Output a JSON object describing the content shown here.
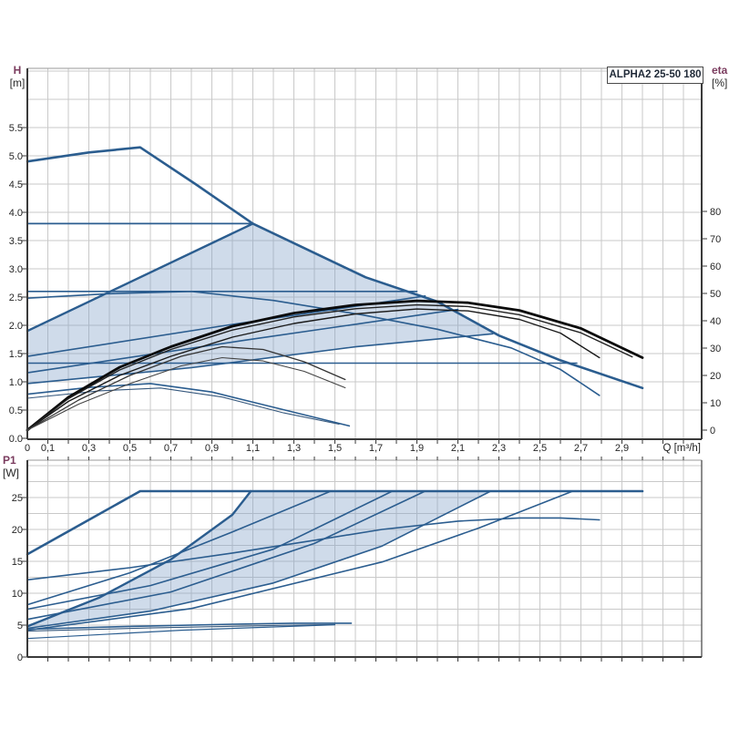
{
  "title_box": "ALPHA2 25-50 180",
  "colors": {
    "curve_blue": "#2b5d8f",
    "curve_blue_dark": "#37597e",
    "curve_black": "#0b0b0b",
    "curve_gray_black": "#333333",
    "shading": "rgba(130,160,200,0.38)",
    "grid": "#c9c9c9",
    "axis": "#3a3a3a",
    "border": "#999999",
    "tick_text": "#262626",
    "quantity_text": "#7a3b5e",
    "title_text": "#1f2937"
  },
  "labels": {
    "h_qty": "H",
    "h_unit": "[m]",
    "eta_qty": "eta",
    "eta_unit": "[%]",
    "p1_qty": "P1",
    "p1_unit": "[W]",
    "q_axis": "Q [m³/h]"
  },
  "chart_data": [
    {
      "id": "qh",
      "type": "line",
      "title": "ALPHA2 25-50 180",
      "xlabel": "Q [m³/h]",
      "ylabel_left": "H [m]",
      "ylabel_right": "eta [%]",
      "x_range": [
        0,
        3.29
      ],
      "y_left_range": [
        0,
        6.55
      ],
      "y_right_range": [
        0,
        80
      ],
      "grid": {
        "x_step": 0.1,
        "y_step": 0.5
      },
      "x_ticks": [
        [
          "0",
          0
        ],
        [
          "0,1",
          0.1
        ],
        [
          "0,3",
          0.3
        ],
        [
          "0,5",
          0.5
        ],
        [
          "0,7",
          0.7
        ],
        [
          "0,9",
          0.9
        ],
        [
          "1,1",
          1.1
        ],
        [
          "1,3",
          1.3
        ],
        [
          "1,5",
          1.5
        ],
        [
          "1,7",
          1.7
        ],
        [
          "1,9",
          1.9
        ],
        [
          "2,1",
          2.1
        ],
        [
          "2,3",
          2.3
        ],
        [
          "2,5",
          2.5
        ],
        [
          "2,7",
          2.7
        ],
        [
          "2,9",
          2.9
        ]
      ],
      "y_ticks": [
        [
          "0.0",
          0
        ],
        [
          "0.5",
          0.5
        ],
        [
          "1.0",
          1
        ],
        [
          "1.5",
          1.5
        ],
        [
          "2.0",
          2
        ],
        [
          "2.5",
          2.5
        ],
        [
          "3.0",
          3
        ],
        [
          "3.5",
          3.5
        ],
        [
          "4.0",
          4
        ],
        [
          "4.5",
          4.5
        ],
        [
          "5.0",
          5
        ],
        [
          "5.5",
          5.5
        ]
      ],
      "eta_ticks": [
        [
          "0",
          0
        ],
        [
          "10",
          10
        ],
        [
          "20",
          20
        ],
        [
          "30",
          30
        ],
        [
          "40",
          40
        ],
        [
          "50",
          50
        ],
        [
          "60",
          60
        ],
        [
          "70",
          70
        ],
        [
          "80",
          80
        ]
      ],
      "shading": [
        [
          0,
          0.97
        ],
        [
          0.8,
          1.25
        ],
        [
          1.6,
          1.62
        ],
        [
          2.27,
          1.85
        ],
        [
          2.0,
          2.42
        ],
        [
          1.65,
          2.85
        ],
        [
          1.4,
          3.28
        ],
        [
          1.1,
          3.8
        ],
        [
          0,
          1.9
        ]
      ],
      "series": [
        {
          "name": "speed-3-max-curve",
          "axis": "H",
          "color": "#2b5d8f",
          "width": 2.6,
          "points": [
            [
              0,
              4.9
            ],
            [
              0.3,
              5.06
            ],
            [
              0.55,
              5.15
            ],
            [
              0.82,
              4.5
            ],
            [
              1.1,
              3.8
            ],
            [
              1.4,
              3.28
            ],
            [
              1.65,
              2.85
            ],
            [
              2.0,
              2.42
            ],
            [
              2.3,
              1.82
            ],
            [
              2.6,
              1.38
            ],
            [
              3.0,
              0.89
            ]
          ]
        },
        {
          "name": "speed-2-curve",
          "axis": "H",
          "color": "#2b5d8f",
          "width": 1.6,
          "points": [
            [
              0,
              2.48
            ],
            [
              0.4,
              2.56
            ],
            [
              0.8,
              2.6
            ],
            [
              1.2,
              2.44
            ],
            [
              1.64,
              2.18
            ],
            [
              2.0,
              1.93
            ],
            [
              2.36,
              1.6
            ],
            [
              2.6,
              1.22
            ],
            [
              2.79,
              0.76
            ]
          ]
        },
        {
          "name": "speed-1-curve",
          "axis": "H",
          "color": "#2b5d8f",
          "width": 1.6,
          "points": [
            [
              0,
              0.78
            ],
            [
              0.3,
              0.9
            ],
            [
              0.6,
              0.97
            ],
            [
              0.9,
              0.82
            ],
            [
              1.2,
              0.55
            ],
            [
              1.57,
              0.22
            ]
          ]
        },
        {
          "name": "speed-1-curve-b",
          "axis": "H",
          "color": "#37597e",
          "width": 1.1,
          "points": [
            [
              0,
              0.71
            ],
            [
              0.35,
              0.84
            ],
            [
              0.65,
              0.89
            ],
            [
              0.95,
              0.73
            ],
            [
              1.25,
              0.45
            ],
            [
              1.52,
              0.25
            ]
          ]
        },
        {
          "name": "const-pressure-3",
          "axis": "H",
          "color": "#2b5d8f",
          "width": 1.8,
          "points": [
            [
              0,
              3.8
            ],
            [
              1.1,
              3.8
            ]
          ]
        },
        {
          "name": "const-pressure-2",
          "axis": "H",
          "color": "#2b5d8f",
          "width": 1.6,
          "points": [
            [
              0,
              2.6
            ],
            [
              1.9,
              2.6
            ]
          ]
        },
        {
          "name": "const-pressure-1",
          "axis": "H",
          "color": "#2b5d8f",
          "width": 1.6,
          "points": [
            [
              0,
              1.33
            ],
            [
              2.68,
              1.33
            ]
          ]
        },
        {
          "name": "prop-pressure-3",
          "axis": "H",
          "color": "#2b5d8f",
          "width": 2.4,
          "points": [
            [
              0,
              1.9
            ],
            [
              1.1,
              3.8
            ]
          ]
        },
        {
          "name": "prop-pressure-2",
          "axis": "H",
          "color": "#2b5d8f",
          "width": 1.6,
          "points": [
            [
              0,
              1.45
            ],
            [
              0.97,
              2.0
            ],
            [
              1.94,
              2.52
            ]
          ]
        },
        {
          "name": "prop-pressure-1",
          "axis": "H",
          "color": "#2b5d8f",
          "width": 1.6,
          "points": [
            [
              0,
              1.16
            ],
            [
              1.05,
              1.73
            ],
            [
              2.1,
              2.28
            ]
          ]
        },
        {
          "name": "prop-pressure-min",
          "axis": "H",
          "color": "#2b5d8f",
          "width": 1.6,
          "points": [
            [
              0,
              0.97
            ],
            [
              0.8,
              1.25
            ],
            [
              1.6,
              1.62
            ],
            [
              2.27,
              1.85
            ]
          ]
        },
        {
          "name": "eta-speed-3",
          "axis": "eta",
          "color": "#0b0b0b",
          "width": 2.8,
          "points": [
            [
              0,
              0
            ],
            [
              0.2,
              12
            ],
            [
              0.45,
              23
            ],
            [
              0.7,
              30.5
            ],
            [
              1.0,
              38
            ],
            [
              1.3,
              42.8
            ],
            [
              1.6,
              45.8
            ],
            [
              1.9,
              47.3
            ],
            [
              2.15,
              46.6
            ],
            [
              2.4,
              43.8
            ],
            [
              2.7,
              37.2
            ],
            [
              3.0,
              26.5
            ]
          ]
        },
        {
          "name": "eta-speed-3b",
          "axis": "eta",
          "color": "#222222",
          "width": 1.4,
          "points": [
            [
              0,
              0
            ],
            [
              0.2,
              11.5
            ],
            [
              0.45,
              22
            ],
            [
              0.7,
              29.5
            ],
            [
              1.0,
              36.6
            ],
            [
              1.3,
              41.4
            ],
            [
              1.6,
              44.4
            ],
            [
              1.9,
              45.8
            ],
            [
              2.15,
              45.2
            ],
            [
              2.4,
              42.2
            ],
            [
              2.7,
              35.6
            ],
            [
              2.95,
              26.8
            ]
          ]
        },
        {
          "name": "eta-speed-2",
          "axis": "eta",
          "color": "#1a1a1a",
          "width": 1.4,
          "points": [
            [
              0,
              0
            ],
            [
              0.2,
              10.5
            ],
            [
              0.45,
              20
            ],
            [
              0.7,
              27
            ],
            [
              1.0,
              34
            ],
            [
              1.3,
              39
            ],
            [
              1.6,
              42.5
            ],
            [
              1.9,
              44.3
            ],
            [
              2.15,
              43.6
            ],
            [
              2.4,
              40.5
            ],
            [
              2.6,
              35.5
            ],
            [
              2.79,
              26.5
            ]
          ]
        },
        {
          "name": "eta-mid-a",
          "axis": "eta",
          "color": "#333333",
          "width": 1.3,
          "points": [
            [
              0,
              0
            ],
            [
              0.25,
              11
            ],
            [
              0.5,
              20
            ],
            [
              0.75,
              27
            ],
            [
              0.95,
              30.5
            ],
            [
              1.15,
              29.5
            ],
            [
              1.35,
              25
            ],
            [
              1.55,
              18.5
            ]
          ]
        },
        {
          "name": "eta-mid-b",
          "axis": "eta",
          "color": "#444444",
          "width": 1.1,
          "points": [
            [
              0,
              0
            ],
            [
              0.25,
              9.5
            ],
            [
              0.5,
              17
            ],
            [
              0.75,
              23.5
            ],
            [
              0.95,
              26.5
            ],
            [
              1.15,
              25.3
            ],
            [
              1.35,
              21.5
            ],
            [
              1.55,
              15.5
            ]
          ]
        }
      ]
    },
    {
      "id": "power",
      "type": "line",
      "xlabel": "Q [m³/h]",
      "ylabel_left": "P1 [W]",
      "x_range": [
        0,
        3.29
      ],
      "y_left_range": [
        0,
        30.9
      ],
      "grid": {
        "x_step": 0.1,
        "y_step": 2.5
      },
      "y_ticks": [
        [
          "0",
          0
        ],
        [
          "5",
          5
        ],
        [
          "10",
          10
        ],
        [
          "15",
          15
        ],
        [
          "20",
          20
        ],
        [
          "25",
          25
        ]
      ],
      "shading": [
        [
          0,
          4.8
        ],
        [
          0.35,
          9.3
        ],
        [
          0.7,
          15.3
        ],
        [
          1.0,
          22.3
        ],
        [
          1.09,
          26
        ],
        [
          2.26,
          26
        ],
        [
          1.73,
          17.4
        ],
        [
          1.2,
          11.6
        ],
        [
          0.6,
          7.2
        ],
        [
          0,
          4.5
        ]
      ],
      "series": [
        {
          "name": "p1-speed-3",
          "axis": "P",
          "color": "#2b5d8f",
          "width": 2.6,
          "points": [
            [
              0,
              16.1
            ],
            [
              0.3,
              21.5
            ],
            [
              0.55,
              26
            ],
            [
              3.0,
              26
            ]
          ]
        },
        {
          "name": "p1-speed-2",
          "axis": "P",
          "color": "#2b5d8f",
          "width": 1.6,
          "points": [
            [
              0,
              12.1
            ],
            [
              0.5,
              14.0
            ],
            [
              1.0,
              16.3
            ],
            [
              1.4,
              18.3
            ],
            [
              1.73,
              20.0
            ],
            [
              2.1,
              21.3
            ],
            [
              2.4,
              21.8
            ],
            [
              2.6,
              21.8
            ],
            [
              2.79,
              21.5
            ]
          ]
        },
        {
          "name": "p1-auto-top",
          "axis": "P",
          "color": "#2b5d8f",
          "width": 2.4,
          "points": [
            [
              0,
              4.8
            ],
            [
              0.35,
              9.3
            ],
            [
              0.7,
              15.3
            ],
            [
              1.0,
              22.3
            ],
            [
              1.09,
              26
            ]
          ]
        },
        {
          "name": "p1-const-pressure-3",
          "axis": "P",
          "color": "#2b5d8f",
          "width": 1.6,
          "points": [
            [
              0,
              8.2
            ],
            [
              0.5,
              13.2
            ],
            [
              1.0,
              19.6
            ],
            [
              1.48,
              26
            ]
          ]
        },
        {
          "name": "p1-const-pressure-2",
          "axis": "P",
          "color": "#2b5d8f",
          "width": 1.6,
          "points": [
            [
              0,
              7.5
            ],
            [
              0.6,
              11.2
            ],
            [
              1.2,
              16.9
            ],
            [
              1.78,
              26
            ]
          ]
        },
        {
          "name": "p1-prop-pressure-2",
          "axis": "P",
          "color": "#2b5d8f",
          "width": 1.6,
          "points": [
            [
              0,
              5.9
            ],
            [
              0.7,
              10.2
            ],
            [
              1.4,
              17.8
            ],
            [
              1.94,
              26
            ]
          ]
        },
        {
          "name": "p1-auto-min",
          "axis": "P",
          "color": "#2b5d8f",
          "width": 1.6,
          "points": [
            [
              0,
              4.5
            ],
            [
              0.6,
              7.2
            ],
            [
              1.2,
              11.6
            ],
            [
              1.73,
              17.4
            ],
            [
              2.26,
              26
            ]
          ]
        },
        {
          "name": "p1-prop-pressure-1",
          "axis": "P",
          "color": "#2b5d8f",
          "width": 1.6,
          "points": [
            [
              0,
              4.2
            ],
            [
              0.8,
              7.6
            ],
            [
              1.73,
              14.9
            ],
            [
              2.2,
              20.2
            ],
            [
              2.66,
              26
            ]
          ]
        },
        {
          "name": "p1-speed-1",
          "axis": "P",
          "color": "#2b5d8f",
          "width": 1.6,
          "points": [
            [
              0,
              4.35
            ],
            [
              0.5,
              4.8
            ],
            [
              1.0,
              5.15
            ],
            [
              1.3,
              5.3
            ],
            [
              1.58,
              5.3
            ]
          ]
        },
        {
          "name": "p1-speed-1b",
          "axis": "P",
          "color": "#37597e",
          "width": 1.1,
          "points": [
            [
              0,
              4.05
            ],
            [
              0.6,
              4.55
            ],
            [
              1.2,
              4.95
            ],
            [
              1.5,
              5.1
            ]
          ]
        },
        {
          "name": "p1-bottom",
          "axis": "P",
          "color": "#2b5d8f",
          "width": 1.2,
          "points": [
            [
              0,
              2.9
            ],
            [
              0.75,
              4.2
            ],
            [
              1.5,
              5.05
            ]
          ]
        }
      ]
    }
  ]
}
